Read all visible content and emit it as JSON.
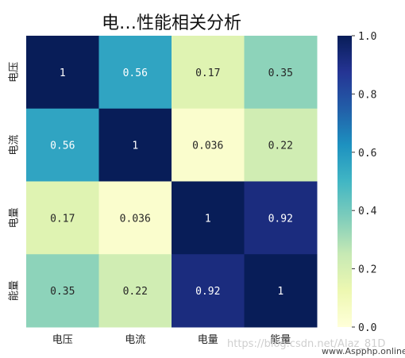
{
  "chart_data": {
    "type": "heatmap",
    "title": "电…性能相关分析",
    "row_labels": [
      "电压",
      "电流",
      "电量",
      "能量"
    ],
    "col_labels": [
      "电压",
      "电流",
      "电量",
      "能量"
    ],
    "values": [
      [
        1,
        0.56,
        0.17,
        0.35
      ],
      [
        0.56,
        1,
        0.036,
        0.22
      ],
      [
        0.17,
        0.036,
        1,
        0.92
      ],
      [
        0.35,
        0.22,
        0.92,
        1
      ]
    ],
    "value_labels": [
      [
        "1",
        "0.56",
        "0.17",
        "0.35"
      ],
      [
        "0.56",
        "1",
        "0.036",
        "0.22"
      ],
      [
        "0.17",
        "0.036",
        "1",
        "0.92"
      ],
      [
        "0.35",
        "0.22",
        "0.92",
        "1"
      ]
    ],
    "colormap": "YlGnBu",
    "colorbar": {
      "range": [
        0,
        1
      ],
      "ticks": [
        "0.0",
        "0.2",
        "0.4",
        "0.6",
        "0.8",
        "1.0"
      ]
    }
  },
  "watermarks": [
    "https://blog.csdn.net/Alaz_81D",
    "www.Aspphp.online"
  ]
}
